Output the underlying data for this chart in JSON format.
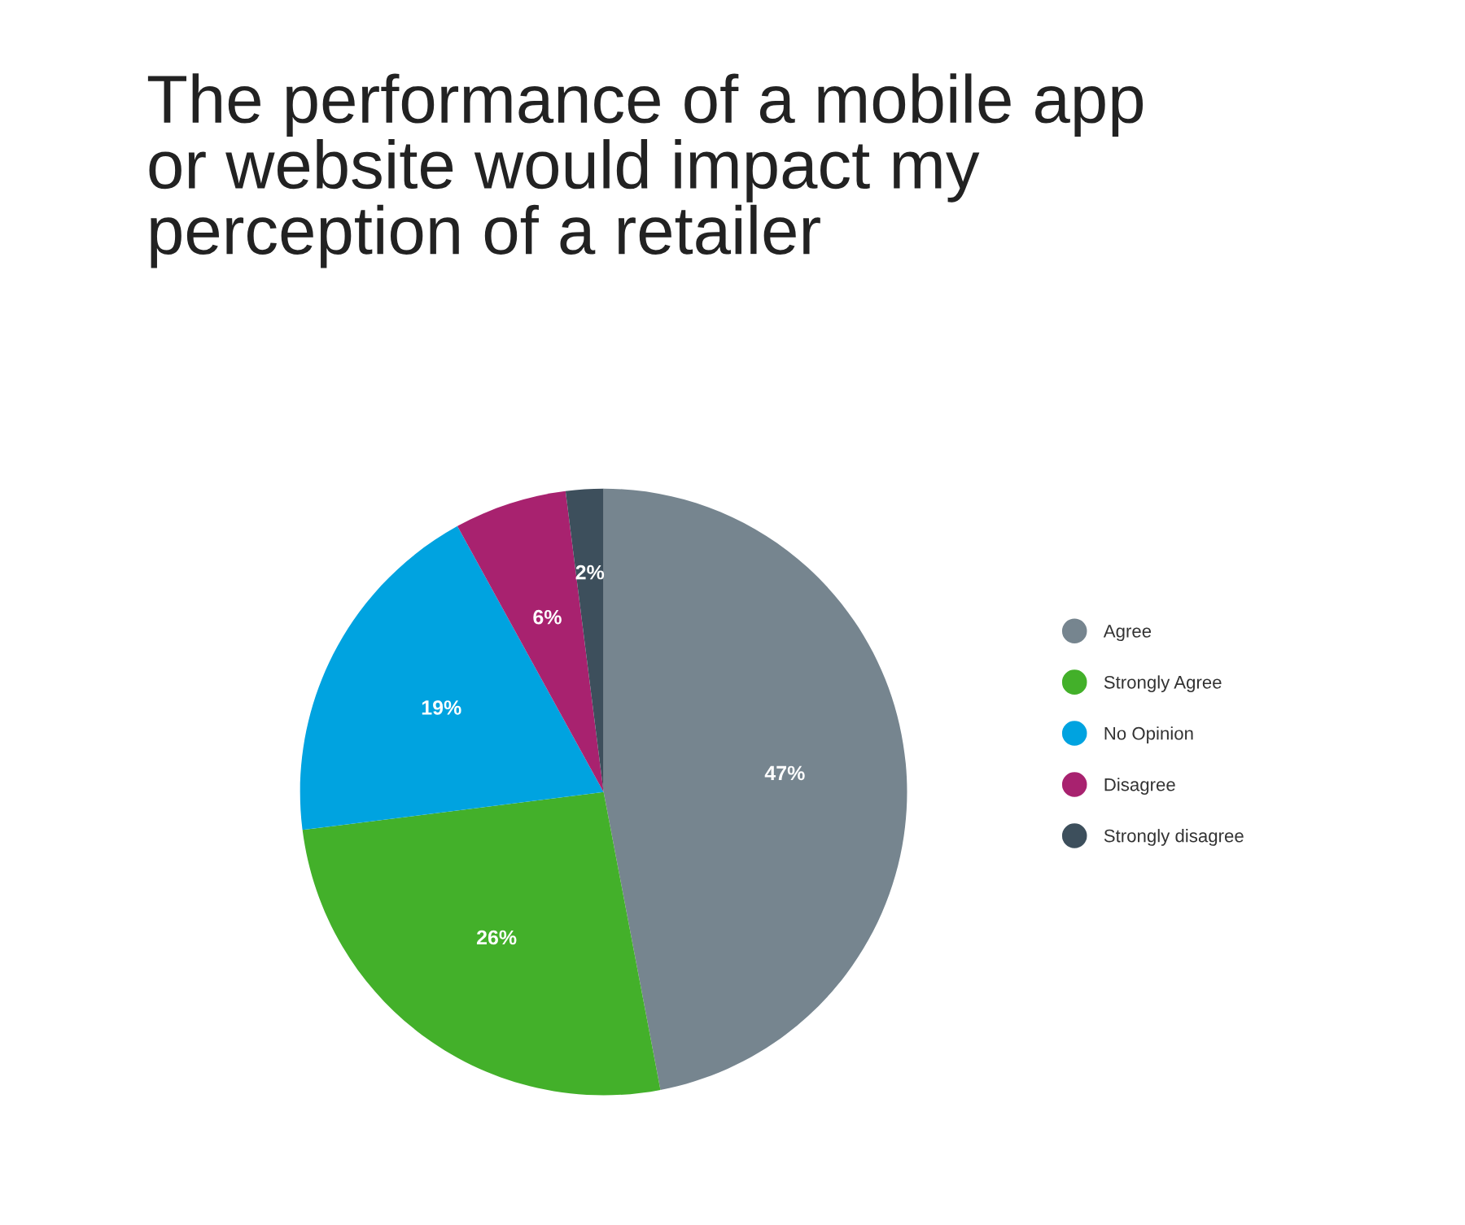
{
  "chart_data": {
    "type": "pie",
    "title": "The performance of a mobile app\nor website would impact my\nperception of a retailer",
    "categories": [
      "Agree",
      "Strongly Agree",
      "No Opinion",
      "Disagree",
      "Strongly disagree"
    ],
    "values": [
      47,
      26,
      19,
      6,
      2
    ],
    "value_labels": [
      "47%",
      "26%",
      "19%",
      "6%",
      "2%"
    ],
    "colors": [
      "#76858f",
      "#43b02a",
      "#00a3e0",
      "#a8226f",
      "#3d4f5c"
    ],
    "legend": "right"
  }
}
